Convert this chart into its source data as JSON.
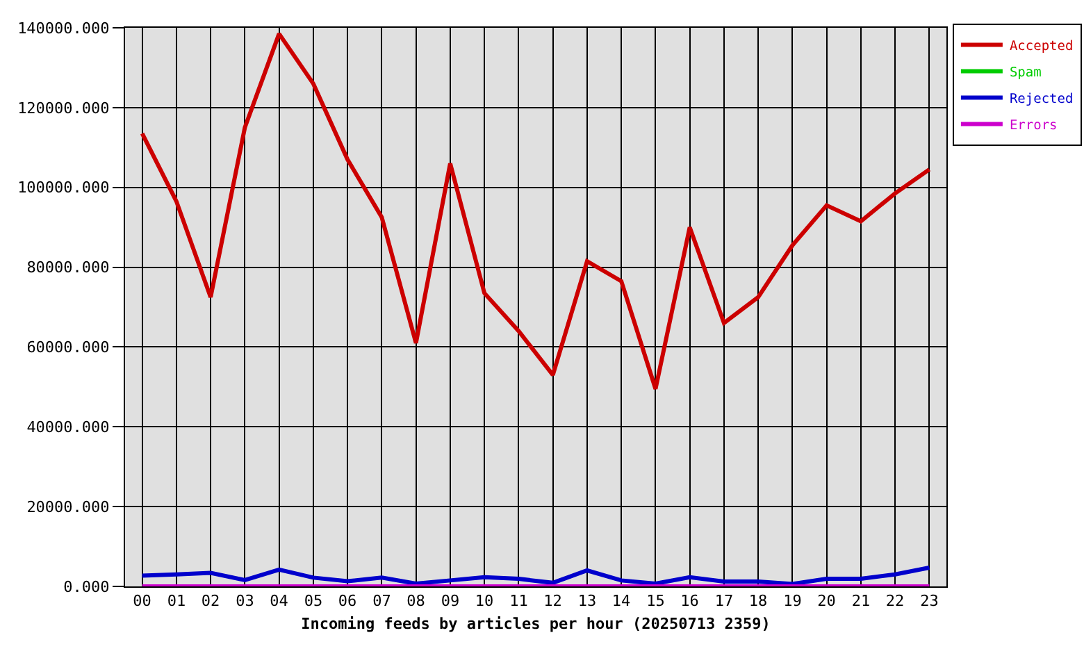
{
  "chart_data": {
    "type": "line",
    "xlabel": "Incoming feeds by articles per hour (20250713 2359)",
    "categories": [
      "00",
      "01",
      "02",
      "03",
      "04",
      "05",
      "06",
      "07",
      "08",
      "09",
      "10",
      "11",
      "12",
      "13",
      "14",
      "15",
      "16",
      "17",
      "18",
      "19",
      "20",
      "21",
      "22",
      "23"
    ],
    "series": [
      {
        "name": "Accepted",
        "color": "#cc0000",
        "values": [
          113500,
          96500,
          72500,
          115000,
          138500,
          126000,
          107000,
          92500,
          61000,
          106000,
          73500,
          64000,
          53000,
          81500,
          76500,
          49500,
          90000,
          66000,
          72500,
          85500,
          95500,
          91500,
          98500,
          104500
        ]
      },
      {
        "name": "Spam",
        "color": "#00cc00",
        "values": [
          null,
          null,
          null,
          null,
          null,
          null,
          null,
          null,
          null,
          null,
          null,
          null,
          null,
          null,
          null,
          null,
          null,
          null,
          null,
          null,
          null,
          null,
          null,
          null
        ]
      },
      {
        "name": "Rejected",
        "color": "#0000cc",
        "values": [
          2700,
          3000,
          3400,
          1600,
          4200,
          2200,
          1300,
          2200,
          700,
          1500,
          2300,
          1900,
          900,
          4000,
          1500,
          700,
          2300,
          1200,
          1200,
          600,
          1900,
          1900,
          3000,
          4700
        ]
      },
      {
        "name": "Errors",
        "color": "#cc00cc",
        "values": [
          0,
          0,
          0,
          0,
          0,
          0,
          0,
          0,
          0,
          0,
          0,
          0,
          0,
          0,
          0,
          0,
          0,
          0,
          0,
          0,
          0,
          0,
          0,
          0
        ]
      }
    ],
    "ylim": [
      0,
      140000
    ],
    "yticks": [
      {
        "value": 0,
        "label": "0.000"
      },
      {
        "value": 20000,
        "label": "20000.000"
      },
      {
        "value": 40000,
        "label": "40000.000"
      },
      {
        "value": 60000,
        "label": "60000.000"
      },
      {
        "value": 80000,
        "label": "80000.000"
      },
      {
        "value": 100000,
        "label": "100000.000"
      },
      {
        "value": 120000,
        "label": "120000.000"
      },
      {
        "value": 140000,
        "label": "140000.000"
      }
    ],
    "grid": true,
    "legend": "top right",
    "line_style": "solid"
  }
}
